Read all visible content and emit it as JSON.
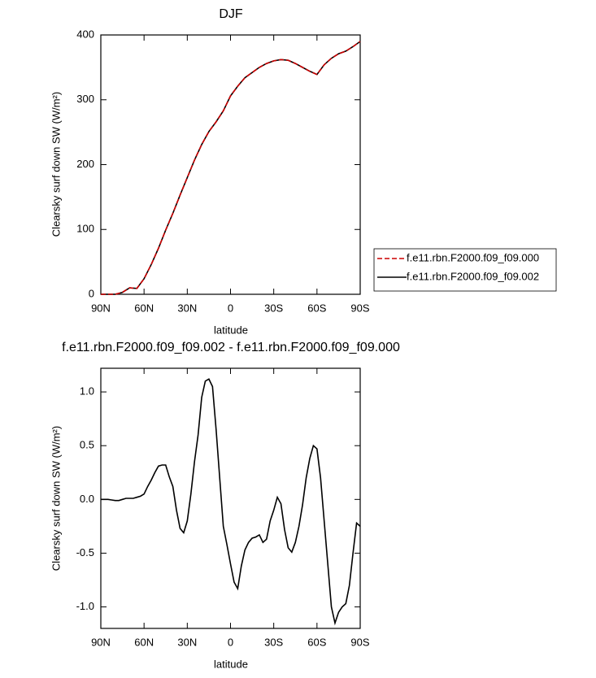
{
  "chart_data": [
    {
      "type": "line",
      "title": "DJF",
      "xlabel": "latitude",
      "ylabel": "Clearsky surf down SW (W/m²)",
      "x": [
        90,
        85,
        80,
        75,
        70,
        65,
        60,
        55,
        50,
        45,
        40,
        35,
        30,
        25,
        20,
        15,
        10,
        5,
        0,
        -5,
        -10,
        -15,
        -20,
        -25,
        -30,
        -35,
        -40,
        -45,
        -50,
        -55,
        -60,
        -65,
        -70,
        -75,
        -80,
        -85,
        -90
      ],
      "series": [
        {
          "name": "f.e11.rbn.F2000.f09_f09.000",
          "color": "#cc0000",
          "linestyle": "dashed",
          "values": [
            0,
            0,
            0,
            3,
            10,
            9,
            24,
            46,
            71,
            99,
            125,
            153,
            180,
            207,
            231,
            251,
            266,
            283,
            306,
            321,
            334,
            342,
            350,
            356,
            360,
            362,
            361,
            356,
            350,
            344,
            339,
            354,
            364,
            371,
            375,
            382,
            390
          ]
        },
        {
          "name": "f.e11.rbn.F2000.f09_f09.002",
          "color": "#000000",
          "linestyle": "solid",
          "values": [
            0,
            0,
            0,
            3,
            10,
            9,
            24,
            46,
            71,
            99,
            125,
            153,
            180,
            207,
            231,
            251,
            266,
            283,
            306,
            321,
            334,
            342,
            350,
            356,
            360,
            362,
            361,
            356,
            350,
            344,
            339,
            354,
            364,
            371,
            375,
            382,
            390
          ]
        }
      ],
      "xlim": [
        90,
        -90
      ],
      "xticks": [
        {
          "value": 90,
          "label": "90N"
        },
        {
          "value": 60,
          "label": "60N"
        },
        {
          "value": 30,
          "label": "30N"
        },
        0,
        {
          "value": -30,
          "label": "30S"
        },
        {
          "value": -60,
          "label": "60S"
        },
        {
          "value": -90,
          "label": "90S"
        }
      ],
      "ylim": [
        0,
        400
      ],
      "yticks": [
        0,
        100,
        200,
        300,
        400
      ],
      "legend": "right"
    },
    {
      "type": "line",
      "title": "f.e11.rbn.F2000.f09_f09.002 - f.e11.rbn.F2000.f09_f09.000",
      "xlabel": "latitude",
      "ylabel": "Clearsky surf down SW (W/m²)",
      "x": [
        90,
        87.5,
        85,
        82.5,
        80,
        77.5,
        75,
        72.5,
        70,
        67.5,
        65,
        62.5,
        60,
        57.5,
        55,
        52.5,
        50,
        47.5,
        45,
        42.5,
        40,
        37.5,
        35,
        32.5,
        30,
        27.5,
        25,
        22.5,
        20,
        17.5,
        15,
        12.5,
        10,
        7.5,
        5,
        2.5,
        0,
        -2.5,
        -5,
        -7.5,
        -10,
        -12.5,
        -15,
        -17.5,
        -20,
        -22.5,
        -25,
        -27.5,
        -30,
        -32.5,
        -35,
        -37.5,
        -40,
        -42.5,
        -45,
        -47.5,
        -50,
        -52.5,
        -55,
        -57.5,
        -60,
        -62.5,
        -65,
        -67.5,
        -70,
        -72.5,
        -75,
        -77.5,
        -80,
        -82.5,
        -85,
        -87.5,
        -90
      ],
      "color": "#000000",
      "values": [
        0,
        0,
        0,
        -0.005,
        -0.01,
        -0.01,
        0,
        0.01,
        0.01,
        0.01,
        0.02,
        0.03,
        0.05,
        0.12,
        0.18,
        0.25,
        0.31,
        0.32,
        0.32,
        0.21,
        0.12,
        -0.1,
        -0.27,
        -0.31,
        -0.2,
        0.05,
        0.35,
        0.6,
        0.95,
        1.1,
        1.12,
        1.05,
        0.65,
        0.2,
        -0.25,
        -0.42,
        -0.6,
        -0.77,
        -0.83,
        -0.62,
        -0.47,
        -0.4,
        -0.36,
        -0.35,
        -0.33,
        -0.4,
        -0.37,
        -0.2,
        -0.1,
        0.02,
        -0.04,
        -0.28,
        -0.45,
        -0.49,
        -0.4,
        -0.25,
        -0.05,
        0.2,
        0.38,
        0.5,
        0.47,
        0.2,
        -0.2,
        -0.6,
        -1.0,
        -1.15,
        -1.05,
        -1.0,
        -0.97,
        -0.8,
        -0.5,
        -0.22,
        -0.25
      ],
      "xlim": [
        90,
        -90
      ],
      "xticks": [
        {
          "value": 90,
          "label": "90N"
        },
        {
          "value": 60,
          "label": "60N"
        },
        {
          "value": 30,
          "label": "30N"
        },
        0,
        {
          "value": -30,
          "label": "30S"
        },
        {
          "value": -60,
          "label": "60S"
        },
        {
          "value": -90,
          "label": "90S"
        }
      ],
      "ylim": [
        -1.2,
        1.22
      ],
      "yticks": [
        {
          "value": -1,
          "label": "-1.0"
        },
        -0.5,
        {
          "value": 0,
          "label": "0.0"
        },
        0.5,
        {
          "value": 1,
          "label": "1.0"
        }
      ]
    }
  ]
}
